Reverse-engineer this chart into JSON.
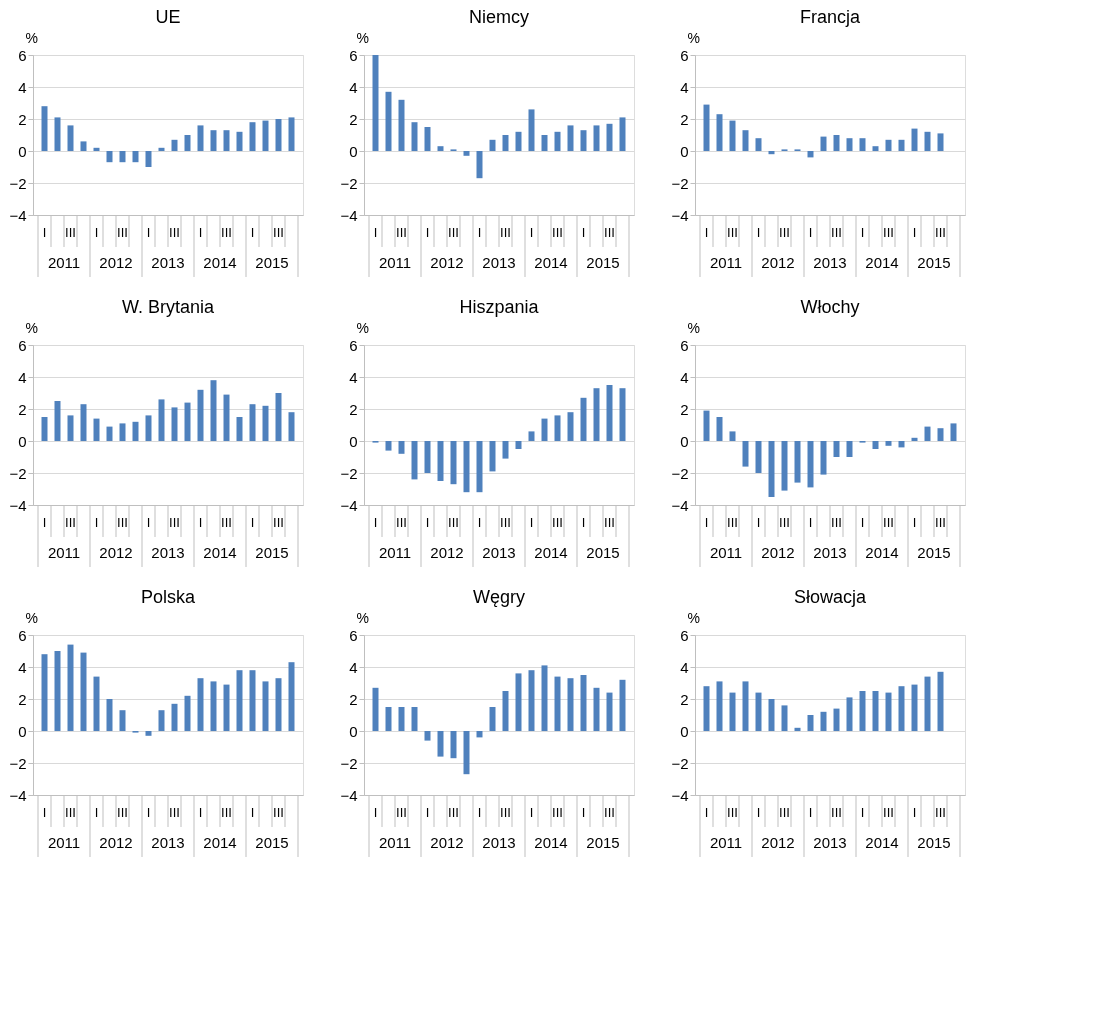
{
  "chart_data": [
    {
      "type": "bar",
      "title": "UE",
      "ylabel": "%",
      "categories": [
        "I",
        null,
        "III",
        null,
        "I",
        null,
        "III",
        null,
        "I",
        null,
        "III",
        null,
        "I",
        null,
        "III",
        null,
        "I",
        null,
        "III",
        null
      ],
      "annotations": [
        "2011",
        "2012",
        "2013",
        "2014",
        "2015"
      ],
      "color": "#4f81bd",
      "ylim": [
        -4,
        6
      ],
      "yticks": [
        -4,
        -2,
        0,
        2,
        4,
        6
      ],
      "grid": "y",
      "values": [
        2.8,
        2.1,
        1.6,
        0.6,
        0.2,
        -0.7,
        -0.7,
        -0.7,
        -1.0,
        0.2,
        0.7,
        1.0,
        1.6,
        1.3,
        1.3,
        1.2,
        1.8,
        1.9,
        2.0,
        2.1
      ]
    },
    {
      "type": "bar",
      "title": "Niemcy",
      "ylabel": "%",
      "categories": [
        "I",
        null,
        "III",
        null,
        "I",
        null,
        "III",
        null,
        "I",
        null,
        "III",
        null,
        "I",
        null,
        "III",
        null,
        "I",
        null,
        "III",
        null
      ],
      "annotations": [
        "2011",
        "2012",
        "2013",
        "2014",
        "2015"
      ],
      "color": "#4f81bd",
      "ylim": [
        -4,
        6
      ],
      "yticks": [
        -4,
        -2,
        0,
        2,
        4,
        6
      ],
      "grid": "y",
      "values": [
        6.0,
        3.7,
        3.2,
        1.8,
        1.5,
        0.3,
        0.1,
        -0.3,
        -1.7,
        0.7,
        1.0,
        1.2,
        2.6,
        1.0,
        1.2,
        1.6,
        1.3,
        1.6,
        1.7,
        2.1
      ]
    },
    {
      "type": "bar",
      "title": "Francja",
      "ylabel": "%",
      "categories": [
        "I",
        null,
        "III",
        null,
        "I",
        null,
        "III",
        null,
        "I",
        null,
        "III",
        null,
        "I",
        null,
        "III",
        null,
        "I",
        null,
        "III",
        null
      ],
      "annotations": [
        "2011",
        "2012",
        "2013",
        "2014",
        "2015"
      ],
      "color": "#4f81bd",
      "ylim": [
        -4,
        6
      ],
      "yticks": [
        -4,
        -2,
        0,
        2,
        4,
        6
      ],
      "grid": "y",
      "values": [
        2.9,
        2.3,
        1.9,
        1.3,
        0.8,
        -0.2,
        0.1,
        0.1,
        -0.4,
        0.9,
        1.0,
        0.8,
        0.8,
        0.3,
        0.7,
        0.7,
        1.4,
        1.2,
        1.1,
        null
      ]
    },
    {
      "type": "bar",
      "title": "W. Brytania",
      "ylabel": "%",
      "categories": [
        "I",
        null,
        "III",
        null,
        "I",
        null,
        "III",
        null,
        "I",
        null,
        "III",
        null,
        "I",
        null,
        "III",
        null,
        "I",
        null,
        "III",
        null
      ],
      "annotations": [
        "2011",
        "2012",
        "2013",
        "2014",
        "2015"
      ],
      "color": "#4f81bd",
      "ylim": [
        -4,
        6
      ],
      "yticks": [
        -4,
        -2,
        0,
        2,
        4,
        6
      ],
      "grid": "y",
      "values": [
        1.5,
        2.5,
        1.6,
        2.3,
        1.4,
        0.9,
        1.1,
        1.2,
        1.6,
        2.6,
        2.1,
        2.4,
        3.2,
        3.8,
        2.9,
        1.5,
        2.3,
        2.2,
        3.0,
        1.8
      ]
    },
    {
      "type": "bar",
      "title": "Hiszpania",
      "ylabel": "%",
      "categories": [
        "I",
        null,
        "III",
        null,
        "I",
        null,
        "III",
        null,
        "I",
        null,
        "III",
        null,
        "I",
        null,
        "III",
        null,
        "I",
        null,
        "III",
        null
      ],
      "annotations": [
        "2011",
        "2012",
        "2013",
        "2014",
        "2015"
      ],
      "color": "#4f81bd",
      "ylim": [
        -4,
        6
      ],
      "yticks": [
        -4,
        -2,
        0,
        2,
        4,
        6
      ],
      "grid": "y",
      "values": [
        -0.1,
        -0.6,
        -0.8,
        -2.4,
        -2.0,
        -2.5,
        -2.7,
        -3.2,
        -3.2,
        -1.9,
        -1.1,
        -0.5,
        0.6,
        1.4,
        1.6,
        1.8,
        2.7,
        3.3,
        3.5,
        3.3
      ]
    },
    {
      "type": "bar",
      "title": "Włochy",
      "ylabel": "%",
      "categories": [
        "I",
        null,
        "III",
        null,
        "I",
        null,
        "III",
        null,
        "I",
        null,
        "III",
        null,
        "I",
        null,
        "III",
        null,
        "I",
        null,
        "III",
        null
      ],
      "annotations": [
        "2011",
        "2012",
        "2013",
        "2014",
        "2015"
      ],
      "color": "#4f81bd",
      "ylim": [
        -4,
        6
      ],
      "yticks": [
        -4,
        -2,
        0,
        2,
        4,
        6
      ],
      "grid": "y",
      "values": [
        1.9,
        1.5,
        0.6,
        -1.6,
        -2.0,
        -3.5,
        -3.1,
        -2.6,
        -2.9,
        -2.1,
        -1.0,
        -1.0,
        -0.1,
        -0.5,
        -0.3,
        -0.4,
        0.2,
        0.9,
        0.8,
        1.1
      ]
    },
    {
      "type": "bar",
      "title": "Polska",
      "ylabel": "%",
      "categories": [
        "I",
        null,
        "III",
        null,
        "I",
        null,
        "III",
        null,
        "I",
        null,
        "III",
        null,
        "I",
        null,
        "III",
        null,
        "I",
        null,
        "III",
        null
      ],
      "annotations": [
        "2011",
        "2012",
        "2013",
        "2014",
        "2015"
      ],
      "color": "#4f81bd",
      "ylim": [
        -4,
        6
      ],
      "yticks": [
        -4,
        -2,
        0,
        2,
        4,
        6
      ],
      "grid": "y",
      "values": [
        4.8,
        5.0,
        5.4,
        4.9,
        3.4,
        2.0,
        1.3,
        -0.1,
        -0.3,
        1.3,
        1.7,
        2.2,
        3.3,
        3.1,
        2.9,
        3.8,
        3.8,
        3.1,
        3.3,
        4.3
      ]
    },
    {
      "type": "bar",
      "title": "Węgry",
      "ylabel": "%",
      "categories": [
        "I",
        null,
        "III",
        null,
        "I",
        null,
        "III",
        null,
        "I",
        null,
        "III",
        null,
        "I",
        null,
        "III",
        null,
        "I",
        null,
        "III",
        null
      ],
      "annotations": [
        "2011",
        "2012",
        "2013",
        "2014",
        "2015"
      ],
      "color": "#4f81bd",
      "ylim": [
        -4,
        6
      ],
      "yticks": [
        -4,
        -2,
        0,
        2,
        4,
        6
      ],
      "grid": "y",
      "values": [
        2.7,
        1.5,
        1.5,
        1.5,
        -0.6,
        -1.6,
        -1.7,
        -2.7,
        -0.4,
        1.5,
        2.5,
        3.6,
        3.8,
        4.1,
        3.4,
        3.3,
        3.5,
        2.7,
        2.4,
        3.2
      ]
    },
    {
      "type": "bar",
      "title": "Słowacja",
      "ylabel": "%",
      "categories": [
        "I",
        null,
        "III",
        null,
        "I",
        null,
        "III",
        null,
        "I",
        null,
        "III",
        null,
        "I",
        null,
        "III",
        null,
        "I",
        null,
        "III",
        null
      ],
      "annotations": [
        "2011",
        "2012",
        "2013",
        "2014",
        "2015"
      ],
      "color": "#4f81bd",
      "ylim": [
        -4,
        6
      ],
      "yticks": [
        -4,
        -2,
        0,
        2,
        4,
        6
      ],
      "grid": "y",
      "values": [
        2.8,
        3.1,
        2.4,
        3.1,
        2.4,
        2.0,
        1.6,
        0.2,
        1.0,
        1.2,
        1.4,
        2.1,
        2.5,
        2.5,
        2.4,
        2.8,
        2.9,
        3.4,
        3.7,
        null
      ]
    }
  ]
}
